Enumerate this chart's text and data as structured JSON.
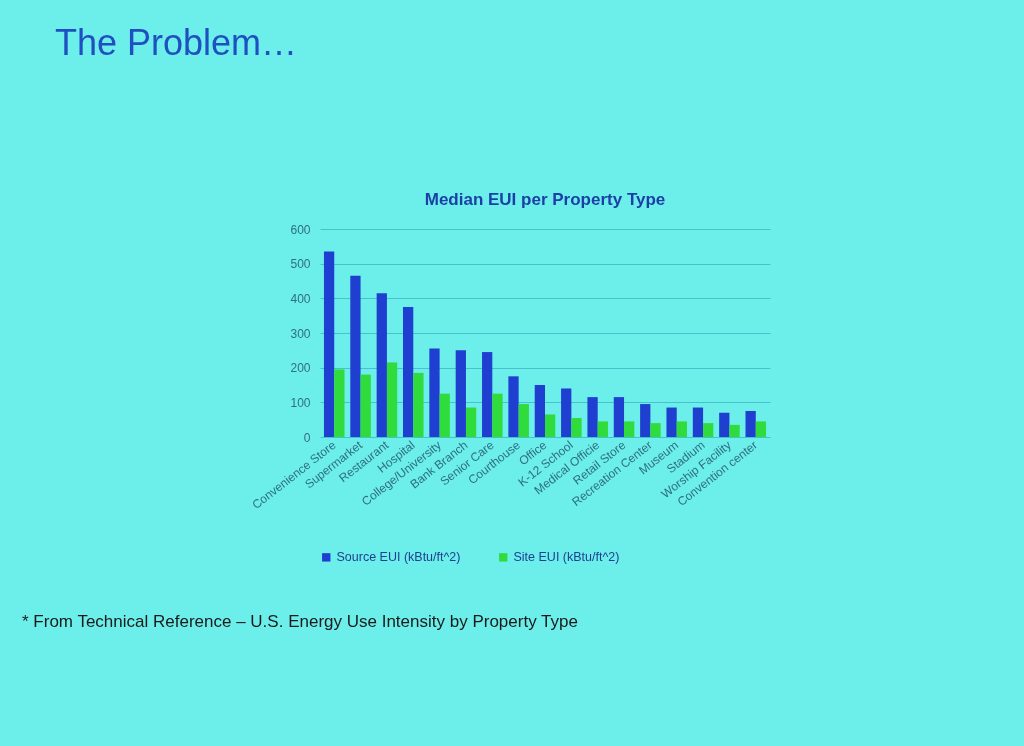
{
  "chart_data": {
    "type": "bar",
    "title": "The Problem…",
    "subtitle": "Median EUI per Property Type",
    "categories": [
      "Convenience Store",
      "Supermarket",
      "Restaurant",
      "Hospital",
      "College/University",
      "Bank Branch",
      "Senior Care",
      "Courthouse",
      "Office",
      "K-12 School",
      "Medical Officie",
      "Retail Store",
      "Recreation Center",
      "Museum",
      "Stadium",
      "Worship Facility",
      "Convention center"
    ],
    "series": [
      {
        "name": "Source EUI (kBtu/ft^2)",
        "color": "#1f3fd0",
        "values": [
          535,
          465,
          415,
          375,
          255,
          250,
          245,
          175,
          150,
          140,
          115,
          115,
          95,
          85,
          85,
          70,
          75
        ]
      },
      {
        "name": "Site EUI (kBtu/ft^2)",
        "color": "#2fdc3c",
        "values": [
          195,
          180,
          215,
          185,
          125,
          85,
          125,
          95,
          65,
          55,
          45,
          45,
          40,
          45,
          40,
          35,
          45
        ]
      }
    ],
    "ylim": [
      0,
      600
    ],
    "yticks": [
      0,
      100,
      200,
      300,
      400,
      500,
      600
    ],
    "grid": "y",
    "legend": "bottom",
    "annotations": [
      "* From Technical Reference – U.S. Energy Use Intensity by Property Type"
    ]
  }
}
